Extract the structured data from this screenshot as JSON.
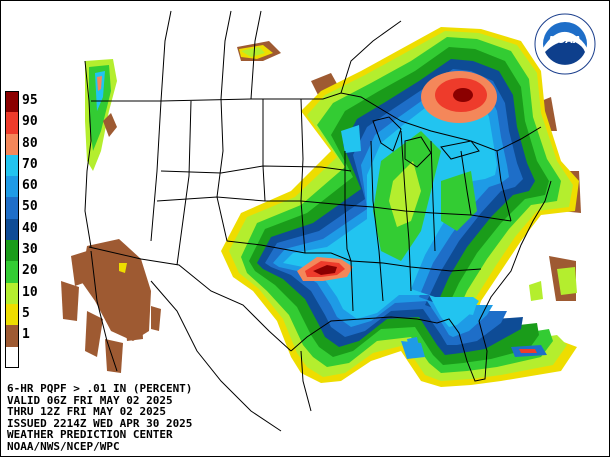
{
  "legend": {
    "items": [
      {
        "label": "95",
        "color": "#8b0000"
      },
      {
        "label": "90",
        "color": "#ee3b2b"
      },
      {
        "label": "80",
        "color": "#f4875a"
      },
      {
        "label": "70",
        "color": "#22c4f0"
      },
      {
        "label": "60",
        "color": "#1e9be6"
      },
      {
        "label": "50",
        "color": "#1e6ec8"
      },
      {
        "label": "40",
        "color": "#0e4c96"
      },
      {
        "label": "30",
        "color": "#1a9c1a"
      },
      {
        "label": "20",
        "color": "#33cc33"
      },
      {
        "label": "10",
        "color": "#b4ee2e"
      },
      {
        "label": "5",
        "color": "#eedd00"
      },
      {
        "label": "1",
        "color": "#9e5a32"
      },
      {
        "label": "",
        "color": "#ffffff"
      }
    ]
  },
  "info": {
    "line1": "6-HR PQPF > .01 IN (PERCENT)",
    "line2": "VALID 06Z FRI MAY 02 2025",
    "line3": "THRU 12Z FRI MAY 02 2025",
    "line4": "ISSUED 2214Z WED APR 30 2025",
    "line5": "WEATHER PREDICTION CENTER",
    "line6": "NOAA/NWS/NCEP/WPC"
  },
  "logo": {
    "text": "NOAA",
    "ring_text": "NATIONAL OCEANIC AND ATMOSPHERIC ADMINISTRATION",
    "ring_text2": "U.S. DEPARTMENT OF COMMERCE"
  }
}
